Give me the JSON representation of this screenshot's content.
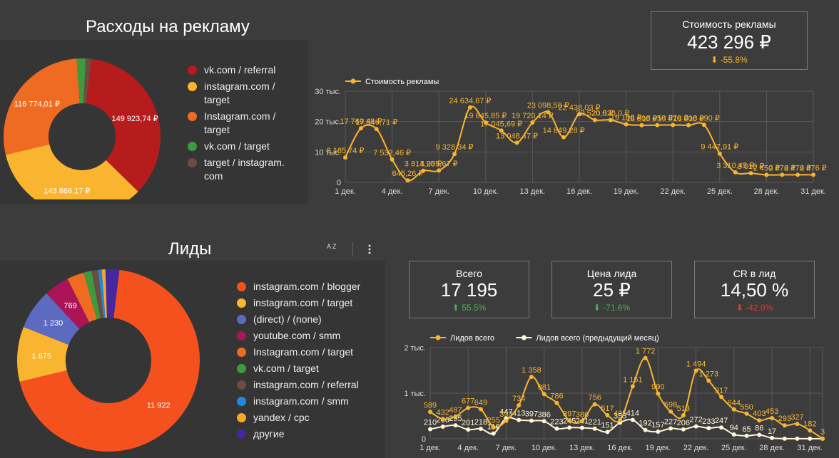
{
  "ads": {
    "title": "Расходы на рекламу",
    "donut": [
      {
        "label": "vk.com / referral",
        "value": 149923.74,
        "value_label": "149 923,74 ₽",
        "color": "#b71c1c"
      },
      {
        "label": "instagram.com / target",
        "value": 143866.17,
        "value_label": "143 866,17 ₽",
        "color": "#f9b52f"
      },
      {
        "label": "Instagram.com / target",
        "value": 116774.01,
        "value_label": "116 774,01 ₽",
        "color": "#ef6b21"
      },
      {
        "label": "vk.com / target",
        "value": 7800,
        "value_label": "",
        "color": "#3d9a3d"
      },
      {
        "label": "target / instagram.com",
        "value": 4900,
        "value_label": "",
        "color": "#6d4c41"
      }
    ],
    "legend_lines": [
      [
        "vk.com / referral"
      ],
      [
        "instagram.com /",
        "target"
      ],
      [
        "Instagram.com /",
        "target"
      ],
      [
        "vk.com / target"
      ],
      [
        "target / instagram.",
        "com"
      ]
    ]
  },
  "cost_card": {
    "label": "Стоимость рекламы",
    "value": "423 296 ₽",
    "delta": "-55.8%",
    "delta_arrow": "⬇",
    "delta_color": "#f9b52f"
  },
  "cost_chart": {
    "chart_data": {
      "type": "line",
      "series": [
        {
          "name": "Стоимость рекламы",
          "color": "#f9b52f",
          "values": [
            8185.74,
            17769.48,
            17546.71,
            7532.46,
            645.26,
            3814.25,
            3905.67,
            9328.34,
            24634.67,
            19645.85,
            17045.69,
            13048.47,
            19720.14,
            23098.58,
            14849.28,
            22438.03,
            20520.0,
            20520.0,
            19100.0,
            18800.0,
            18850.0,
            18870.0,
            18800.0,
            18890.0,
            9447.91,
            3310.45,
            3010.0,
            2450.0,
            2476.0,
            2476.0,
            2476.0
          ],
          "labels": [
            "8 185,74 ₽",
            "17 769,48 ₽",
            "17 546,71 ₽",
            "7 532,46 ₽",
            "645,26 ₽",
            "3 814,25 ₽",
            "3 905,67 ₽",
            "9 328,34 ₽",
            "24 634,67 ₽",
            "19 645,85 ₽",
            "17 045,69 ₽",
            "13 048,47 ₽",
            "19 720,14 ₽",
            "23 098,58 ₽",
            "14 849,28 ₽",
            "22 438,03 ₽",
            "20 520,0 ₽",
            "20 520,0 ₽",
            "19 100 ₽",
            "18 800 ₽",
            "18 850 ₽",
            "18 870 ₽",
            "18 800 ₽",
            "18 890 ₽",
            "9 447,91 ₽",
            "3 310,45 ₽",
            "3 010 ₽",
            "2 450 ₽",
            "2 476 ₽",
            "2 476 ₽",
            "2 476 ₽"
          ]
        }
      ],
      "x_ticks": [
        "1 дек.",
        "4 дек.",
        "7 дек.",
        "10 дек.",
        "13 дек.",
        "16 дек.",
        "19 дек.",
        "22 дек.",
        "25 дек.",
        "28 дек.",
        "31 дек."
      ],
      "y_ticks": [
        "0",
        "10 тыс.",
        "20 тыс.",
        "30 тыс."
      ],
      "ylim": [
        0,
        30000
      ]
    }
  },
  "leads": {
    "title": "Лиды",
    "sort_icon_label": "A Z",
    "donut": [
      {
        "label": "instagram.com / blogger",
        "value": 11922,
        "value_label": "11 922",
        "color": "#f4511e"
      },
      {
        "label": "instagram.com / target",
        "value": 1675,
        "value_label": "1 675",
        "color": "#f9b52f"
      },
      {
        "label": "(direct) / (none)",
        "value": 1230,
        "value_label": "1 230",
        "color": "#5c6bc0"
      },
      {
        "label": "youtube.com / smm",
        "value": 769,
        "value_label": "769",
        "color": "#ad1457"
      },
      {
        "label": "Instagram.com / target",
        "value": 520,
        "value_label": "",
        "color": "#ef6b21"
      },
      {
        "label": "vk.com / target",
        "value": 240,
        "value_label": "",
        "color": "#3d9a3d"
      },
      {
        "label": "instagram.com / referral",
        "value": 200,
        "value_label": "",
        "color": "#6d4c41"
      },
      {
        "label": "instagram.com / smm",
        "value": 110,
        "value_label": "",
        "color": "#1e88e5"
      },
      {
        "label": "yandex / cpc",
        "value": 110,
        "value_label": "",
        "color": "#f9a825"
      },
      {
        "label": "другие",
        "value": 419,
        "value_label": "",
        "color": "#4527a0"
      }
    ]
  },
  "cards": [
    {
      "label": "Всего",
      "value": "17 195",
      "delta": "55.5%",
      "delta_arrow": "⬆",
      "delta_color": "#4caf50"
    },
    {
      "label": "Цена лида",
      "value": "25 ₽",
      "delta": "-71.6%",
      "delta_arrow": "⬇",
      "delta_color": "#4caf50"
    },
    {
      "label": "CR в лид",
      "value": "14,50 %",
      "delta": "-42.0%",
      "delta_arrow": "⬇",
      "delta_color": "#e53935"
    }
  ],
  "leads_chart": {
    "chart_data": {
      "type": "line",
      "series": [
        {
          "name": "Лидов всего",
          "color": "#f9b52f",
          "values": [
            589,
            432,
            487,
            677,
            649,
            255,
            393,
            734,
            1358,
            981,
            786,
            397,
            386,
            756,
            517,
            405,
            1151,
            1772,
            990,
            598,
            513,
            1494,
            1273,
            917,
            644,
            550,
            403,
            453,
            293,
            327,
            182,
            3
          ],
          "labels": [
            "589",
            "432",
            "487",
            "677",
            "649",
            "255",
            "393",
            "734",
            "1 358",
            "981",
            "786",
            "397",
            "386",
            "756",
            "517",
            "405",
            "1 151",
            "1 772",
            "990",
            "598",
            "513",
            "1 494",
            "1 273",
            "917",
            "644",
            "550",
            "403",
            "453",
            "293",
            "327",
            "182",
            "3"
          ]
        },
        {
          "name": "Лидов всего (предыдущий месяц)",
          "color": "#fff7d6",
          "values": [
            210,
            266,
            295,
            201,
            218,
            116,
            447,
            413,
            397,
            386,
            223,
            245,
            241,
            221,
            151,
            355,
            414,
            192,
            157,
            227,
            206,
            272,
            233,
            247,
            94,
            65,
            86,
            17,
            2,
            2,
            2,
            2
          ],
          "labels": [
            "210",
            "266",
            "295",
            "201",
            "218",
            "116",
            "447",
            "413",
            "397",
            "386",
            "223",
            "245",
            "241",
            "221",
            "151",
            "355",
            "414",
            "192",
            "157",
            "227",
            "206",
            "272",
            "233",
            "247",
            "94",
            "65",
            "86",
            "17",
            "",
            "",
            "",
            ""
          ]
        }
      ],
      "x_ticks": [
        "1 дек.",
        "4 дек.",
        "7 дек.",
        "10 дек.",
        "13 дек.",
        "16 дек.",
        "19 дек.",
        "22 дек.",
        "25 дек.",
        "28 дек.",
        "31 дек."
      ],
      "y_ticks": [
        "0",
        "1 тыс.",
        "2 тыс."
      ],
      "ylim": [
        0,
        2000
      ]
    }
  }
}
